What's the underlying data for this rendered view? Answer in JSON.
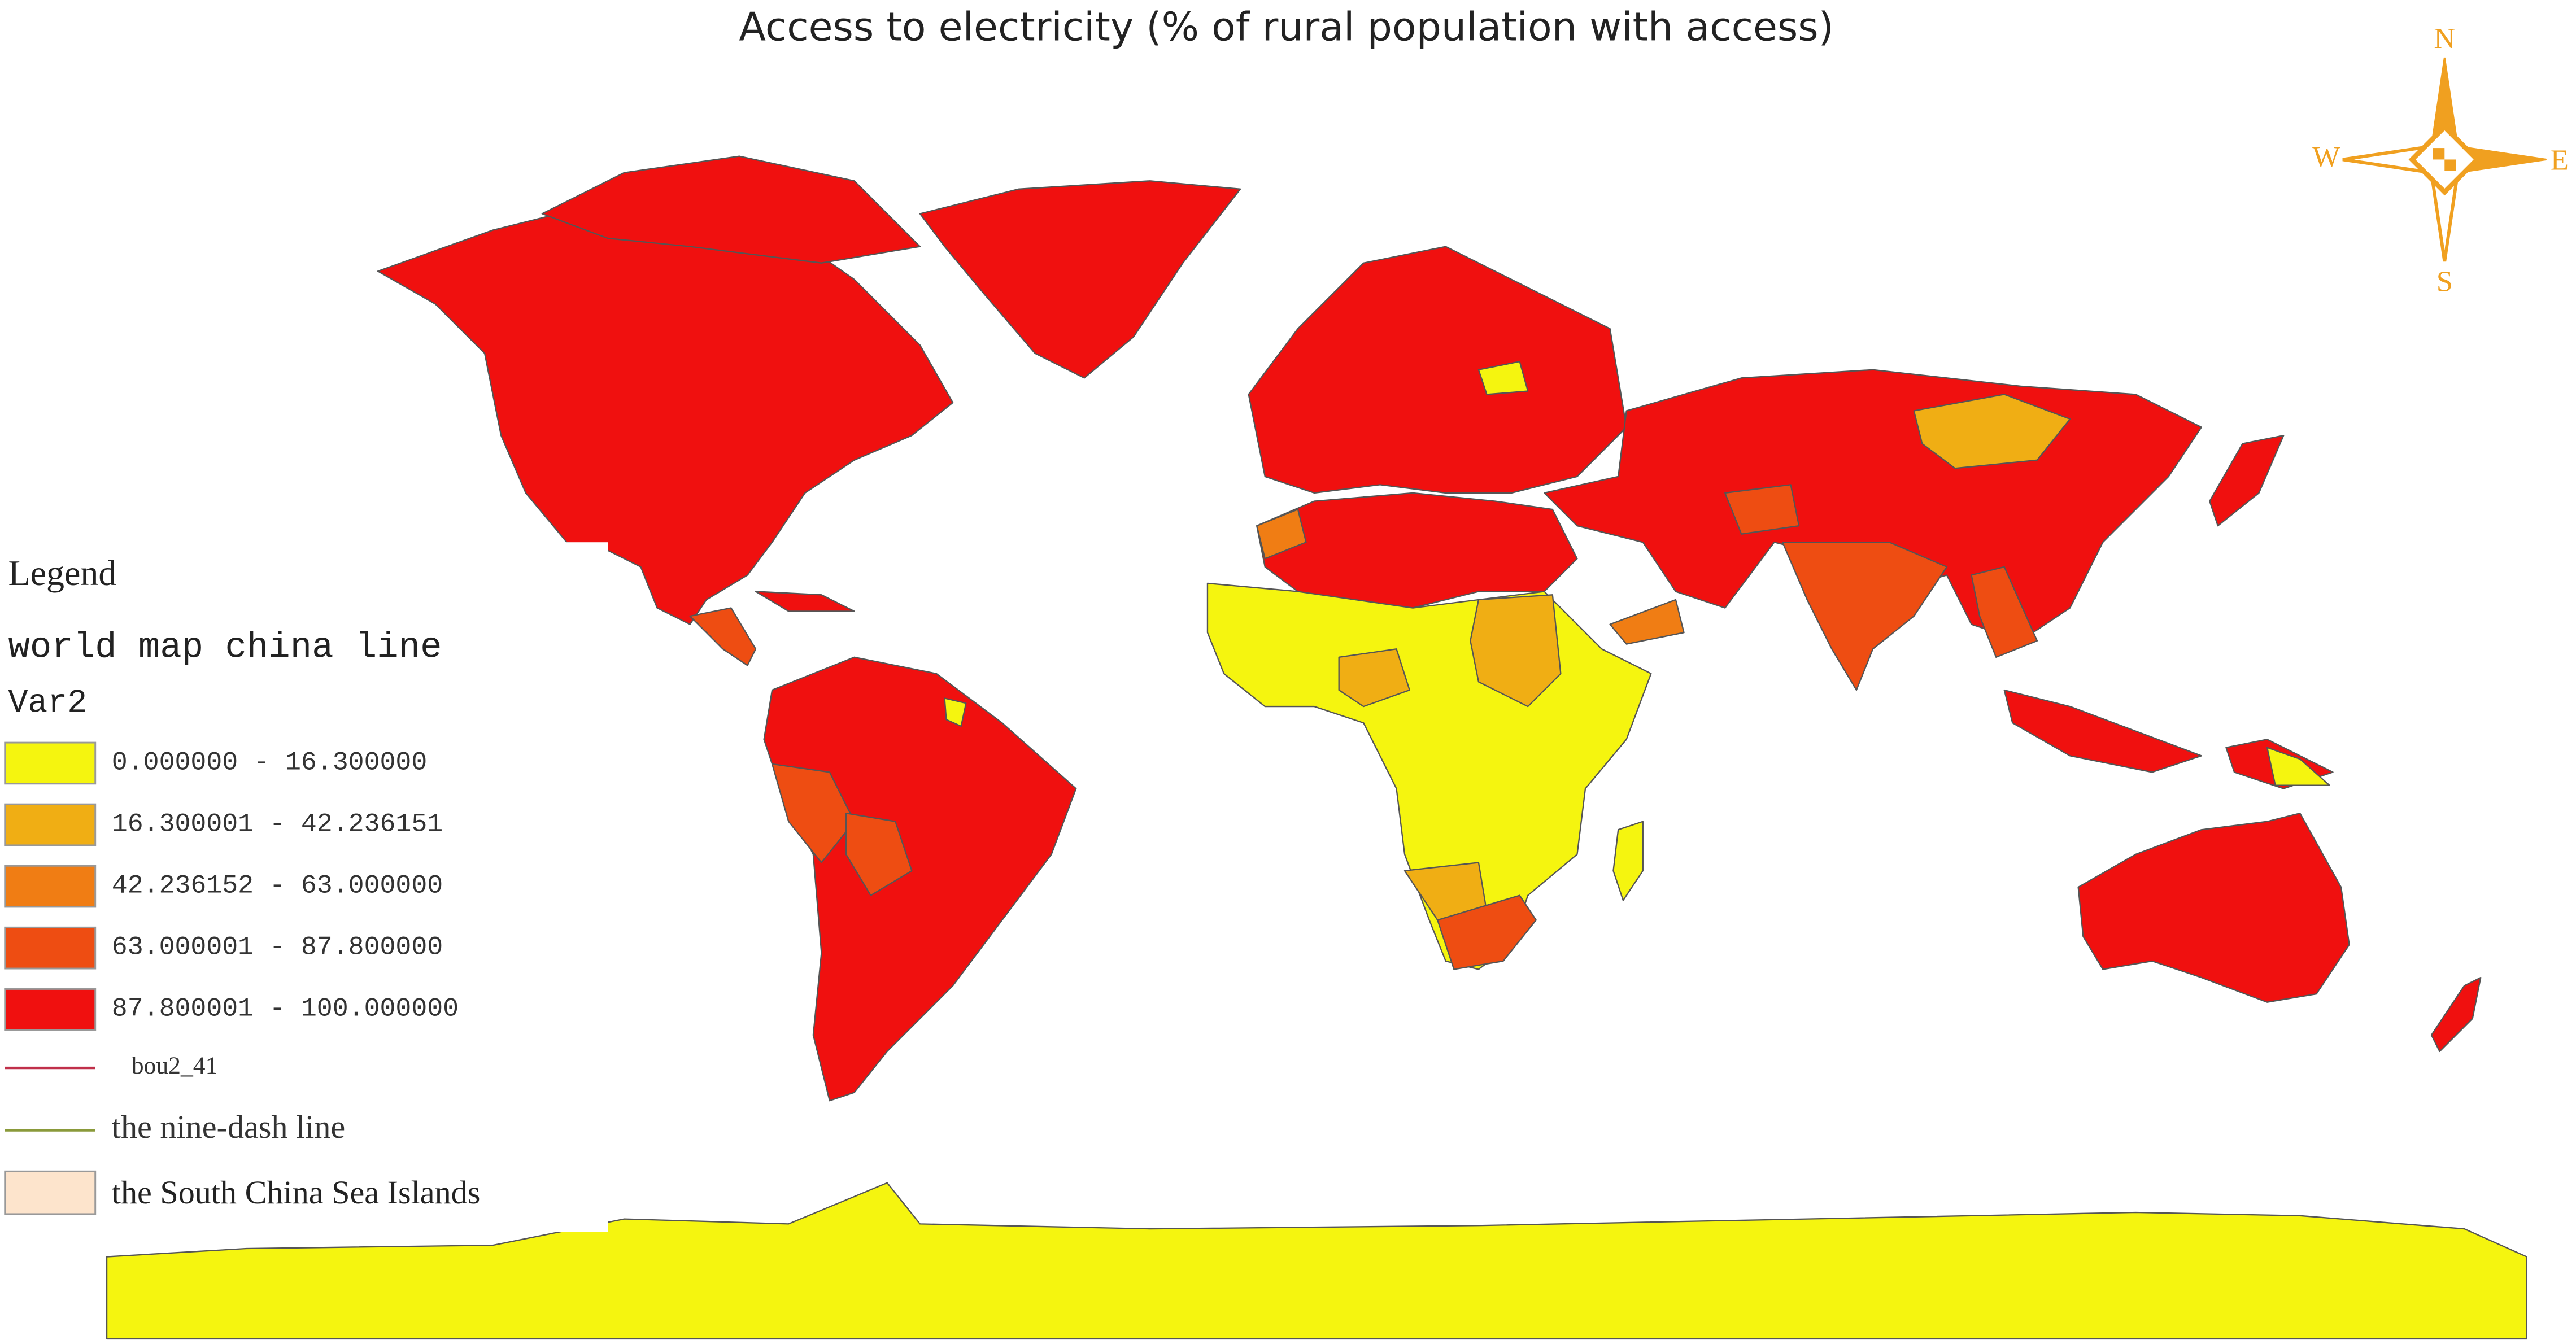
{
  "title": "Access to electricity (% of rural population with access)",
  "compass": {
    "north": "N",
    "east": "E",
    "south": "S",
    "west": "W"
  },
  "legend": {
    "heading": "Legend",
    "layer": "world map china line",
    "field": "Var2",
    "classes": [
      {
        "label": "0.000000 - 16.300000",
        "color": "#f5f50f"
      },
      {
        "label": "16.300001 - 42.236151",
        "color": "#f0ae14"
      },
      {
        "label": "42.236152 - 63.000000",
        "color": "#f07d14"
      },
      {
        "label": "63.000001 - 87.800000",
        "color": "#ee4d12"
      },
      {
        "label": "87.800001 - 100.000000",
        "color": "#f0100f"
      }
    ],
    "lines": [
      {
        "label": "bou2_41",
        "color": "#c0304a"
      },
      {
        "label": "the nine-dash line",
        "color": "#8a9a3a"
      }
    ],
    "area": {
      "label": "the South China Sea Islands",
      "color": "#fde4cc"
    }
  }
}
